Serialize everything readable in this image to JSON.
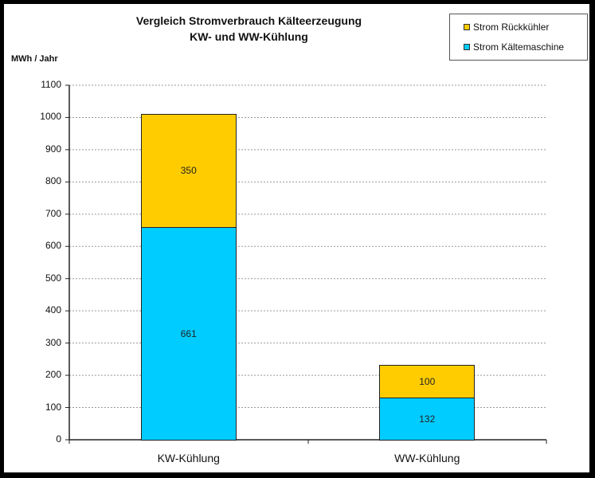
{
  "chart_data": {
    "type": "bar",
    "stacked": true,
    "title": "Vergleich Stromverbrauch Kälteerzeugung",
    "subtitle": "KW- und WW-Kühlung",
    "xlabel": "",
    "ylabel": "MWh / Jahr",
    "ylim": [
      0,
      1100
    ],
    "yticks": [
      0,
      100,
      200,
      300,
      400,
      500,
      600,
      700,
      800,
      900,
      1000,
      1100
    ],
    "grid": true,
    "legend_position": "top-right",
    "categories": [
      "KW-Kühlung",
      "WW-Kühlung"
    ],
    "series": [
      {
        "name": "Strom Kältemaschine",
        "values": [
          661,
          132
        ],
        "color": "#00CCFF"
      },
      {
        "name": "Strom Rückkühler",
        "values": [
          350,
          100
        ],
        "color": "#FFCC00"
      }
    ]
  },
  "legend": {
    "items": [
      {
        "label": "Strom Rückkühler",
        "color": "#FFCC00"
      },
      {
        "label": "Strom Kältemaschine",
        "color": "#00CCFF"
      }
    ]
  }
}
